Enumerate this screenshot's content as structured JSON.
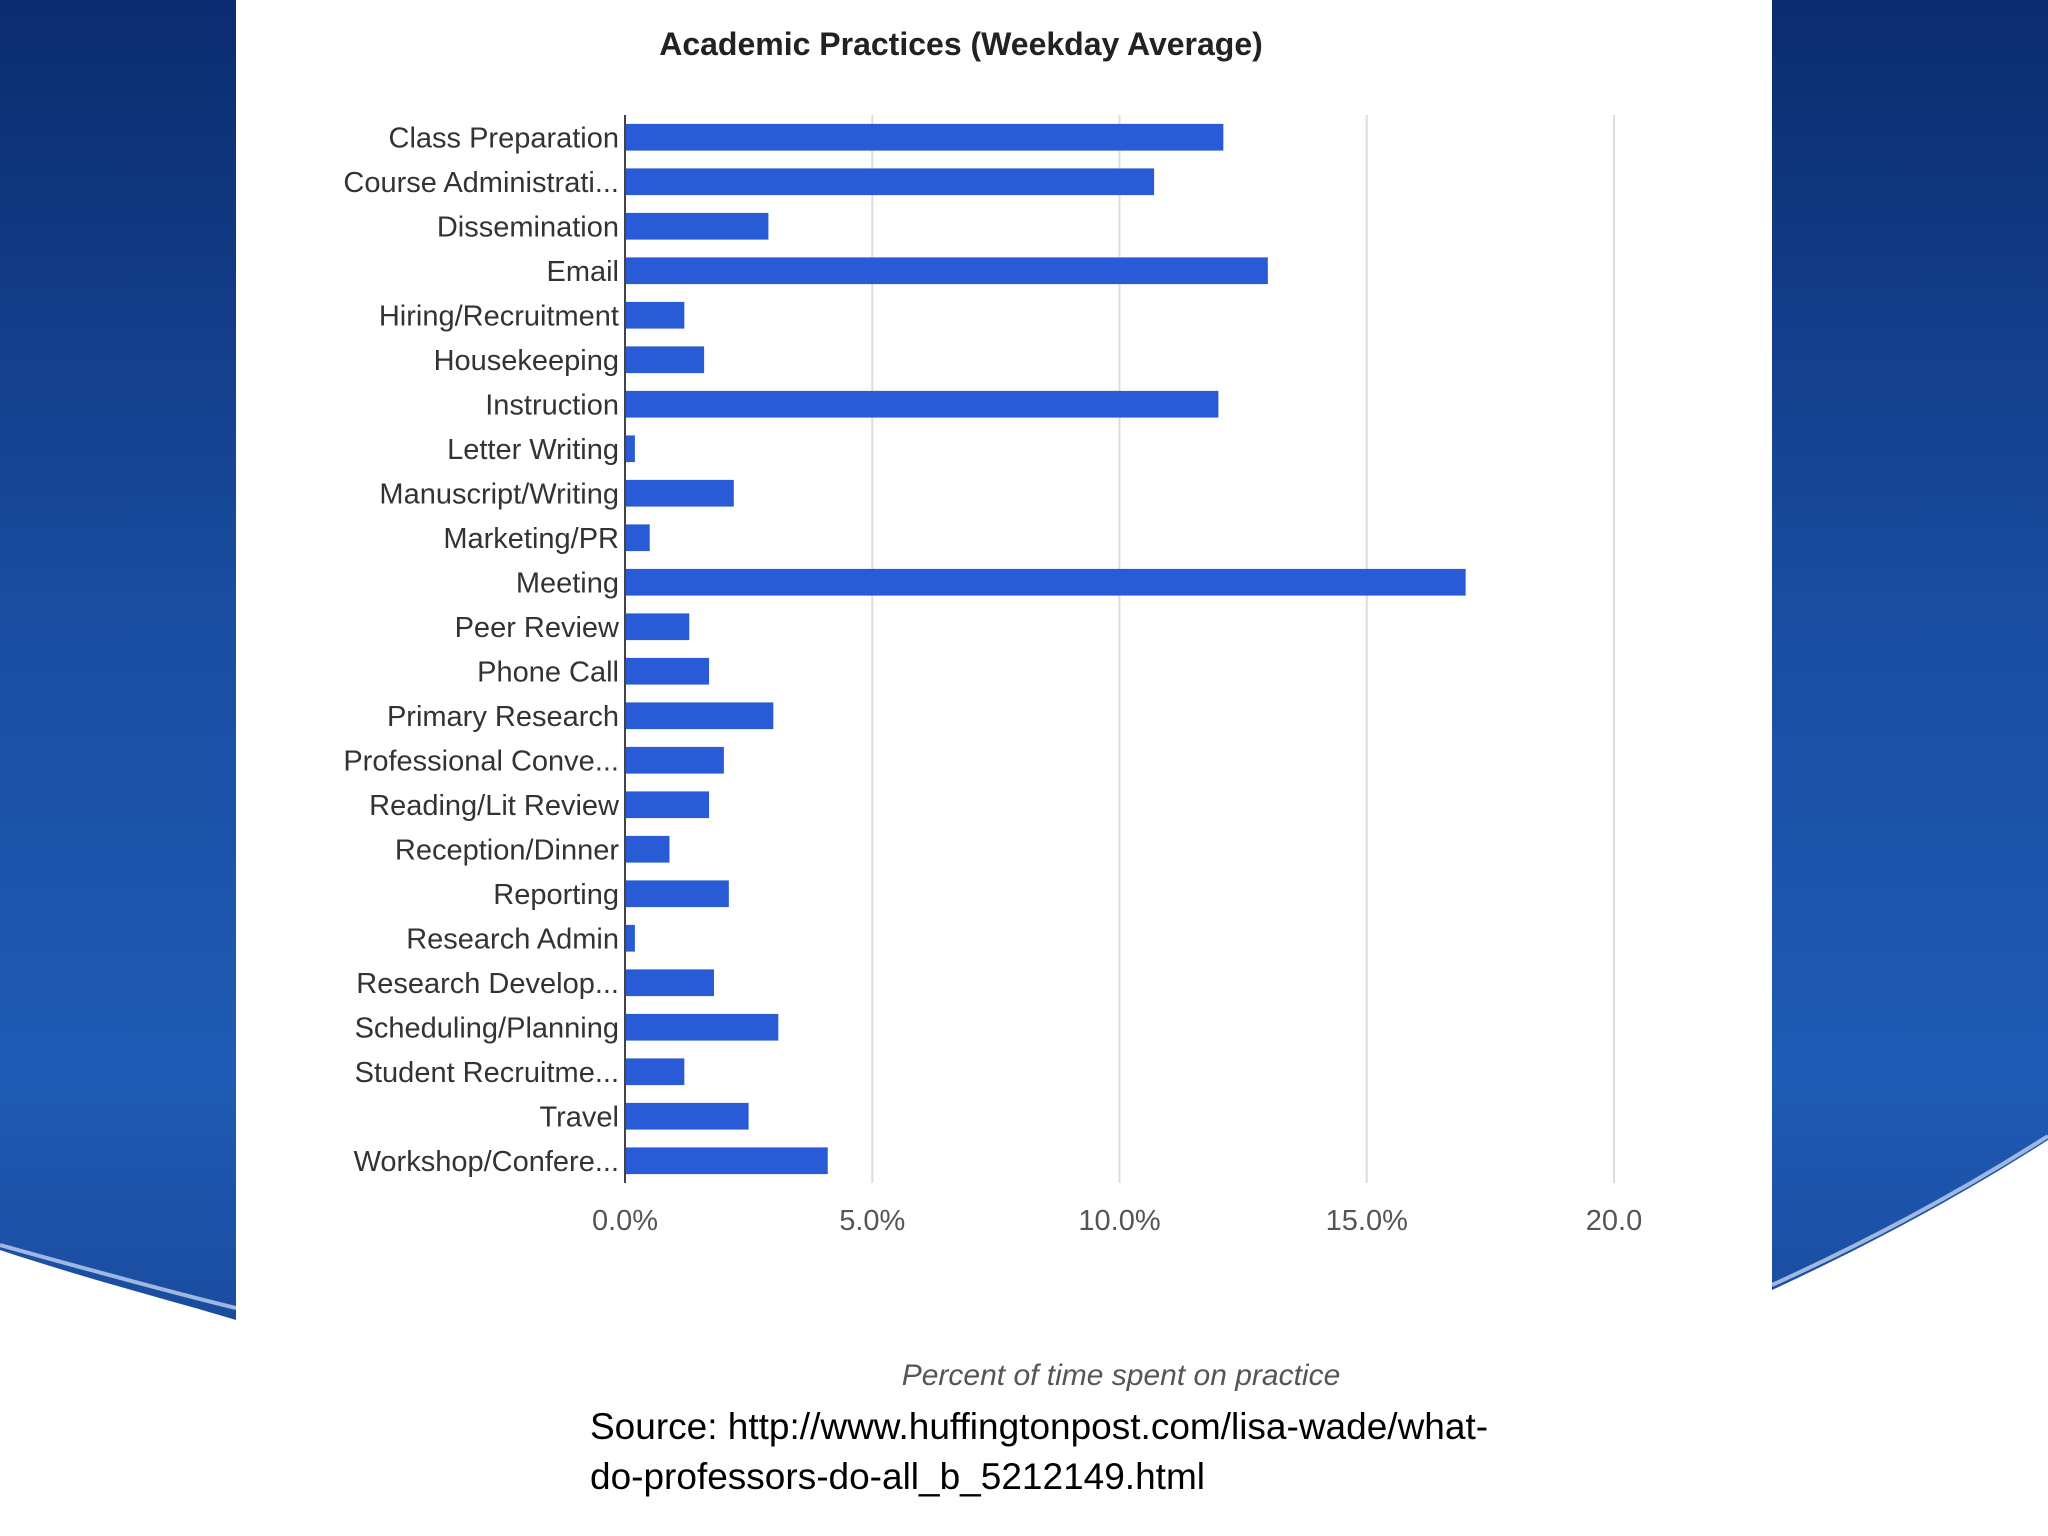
{
  "source": {
    "line1": "Source:  http://www.huffingtonpost.com/lisa-wade/what-",
    "line2": "do-professors-do-all_b_5212149.html"
  },
  "colors": {
    "bar": "#2a5bd7",
    "panel": "#1a4da1",
    "grid": "#dddddd"
  },
  "chart_data": {
    "type": "bar",
    "orientation": "horizontal",
    "title": "Academic Practices (Weekday Average)",
    "xlabel": "Percent of time spent on practice",
    "ylabel": "",
    "xlim": [
      0,
      20
    ],
    "grid": true,
    "legend": "none",
    "x_tick_labels": [
      "0.0%",
      "5.0%",
      "10.0%",
      "15.0%",
      "20.0"
    ],
    "categories": [
      "Class Preparation",
      "Course Administrati...",
      "Dissemination",
      "Email",
      "Hiring/Recruitment",
      "Housekeeping",
      "Instruction",
      "Letter Writing",
      "Manuscript/Writing",
      "Marketing/PR",
      "Meeting",
      "Peer Review",
      "Phone Call",
      "Primary Research",
      "Professional Conve...",
      "Reading/Lit Review",
      "Reception/Dinner",
      "Reporting",
      "Research Admin",
      "Research Develop...",
      "Scheduling/Planning",
      "Student Recruitme...",
      "Travel",
      "Workshop/Confere..."
    ],
    "values": [
      12.1,
      10.7,
      2.9,
      13.0,
      1.2,
      1.6,
      12.0,
      0.2,
      2.2,
      0.5,
      17.0,
      1.3,
      1.7,
      3.0,
      2.0,
      1.7,
      0.9,
      2.1,
      0.2,
      1.8,
      3.1,
      1.2,
      2.5,
      4.1
    ]
  }
}
